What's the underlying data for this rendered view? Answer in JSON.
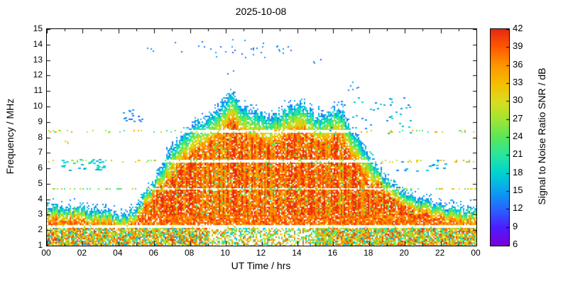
{
  "chart_data": {
    "type": "heatmap",
    "title": "2025-10-08",
    "xlabel": "UT Time / hrs",
    "ylabel": "Frequency / MHz",
    "xlim": [
      0,
      24
    ],
    "ylim": [
      1,
      15
    ],
    "x_ticks": [
      {
        "t": 0,
        "label": "00"
      },
      {
        "t": 2,
        "label": "02"
      },
      {
        "t": 4,
        "label": "04"
      },
      {
        "t": 6,
        "label": "06"
      },
      {
        "t": 8,
        "label": "08"
      },
      {
        "t": 10,
        "label": "10"
      },
      {
        "t": 12,
        "label": "12"
      },
      {
        "t": 14,
        "label": "14"
      },
      {
        "t": 16,
        "label": "16"
      },
      {
        "t": 18,
        "label": "18"
      },
      {
        "t": 20,
        "label": "20"
      },
      {
        "t": 22,
        "label": "22"
      },
      {
        "t": 24,
        "label": "00"
      }
    ],
    "x_minor_step": 1,
    "y_ticks": [
      1,
      2,
      3,
      4,
      5,
      6,
      7,
      8,
      9,
      10,
      11,
      12,
      13,
      14,
      15
    ],
    "colorbar": {
      "label": "Signal to Noise Ratio SNR / dB",
      "vmin": 6,
      "vmax": 42,
      "ticks": [
        6,
        9,
        12,
        15,
        18,
        21,
        24,
        27,
        30,
        33,
        36,
        39,
        42
      ]
    },
    "colormap": [
      [
        6,
        "#7d00d8"
      ],
      [
        9,
        "#4b1eff"
      ],
      [
        12,
        "#2864ff"
      ],
      [
        15,
        "#0aa0f0"
      ],
      [
        18,
        "#00d2d2"
      ],
      [
        21,
        "#28e6a0"
      ],
      [
        24,
        "#5ae65a"
      ],
      [
        27,
        "#a0e632"
      ],
      [
        30,
        "#dcdc1e"
      ],
      [
        33,
        "#f5be00"
      ],
      [
        36,
        "#ff9600"
      ],
      [
        39,
        "#ff5a00"
      ],
      [
        42,
        "#e62814"
      ]
    ],
    "frame_color": "#000000",
    "background_color": "#ffffff",
    "envelope": [
      [
        0,
        3.6
      ],
      [
        1,
        3.4
      ],
      [
        2,
        3.4
      ],
      [
        3,
        3.2
      ],
      [
        4,
        3.0
      ],
      [
        4.5,
        3.0
      ],
      [
        5,
        3.5
      ],
      [
        5.5,
        4.3
      ],
      [
        6,
        5.2
      ],
      [
        6.5,
        6.3
      ],
      [
        7,
        7.3
      ],
      [
        7.5,
        8.0
      ],
      [
        8,
        8.6
      ],
      [
        8.5,
        9.0
      ],
      [
        9,
        9.3
      ],
      [
        9.5,
        9.7
      ],
      [
        10,
        10.3
      ],
      [
        10.3,
        10.9
      ],
      [
        10.6,
        10.4
      ],
      [
        11,
        9.9
      ],
      [
        11.5,
        9.6
      ],
      [
        12,
        9.5
      ],
      [
        12.5,
        9.3
      ],
      [
        13,
        9.6
      ],
      [
        13.5,
        9.9
      ],
      [
        14,
        10.2
      ],
      [
        14.5,
        10.0
      ],
      [
        15,
        9.4
      ],
      [
        15.5,
        9.3
      ],
      [
        16,
        9.7
      ],
      [
        16.3,
        9.9
      ],
      [
        16.6,
        9.4
      ],
      [
        17,
        8.6
      ],
      [
        17.5,
        7.8
      ],
      [
        18,
        6.9
      ],
      [
        18.5,
        6.0
      ],
      [
        19,
        5.3
      ],
      [
        19.5,
        4.8
      ],
      [
        20,
        4.4
      ],
      [
        20.5,
        4.1
      ],
      [
        21,
        3.9
      ],
      [
        21.5,
        3.7
      ],
      [
        22,
        3.6
      ],
      [
        22.5,
        3.5
      ],
      [
        23,
        3.4
      ],
      [
        24,
        3.3
      ]
    ],
    "gap_bands": [
      {
        "f": [
          2.18,
          2.3
        ],
        "keep": 0.05
      },
      {
        "f": [
          4.62,
          4.74
        ],
        "keep": 0.35
      },
      {
        "f": [
          6.38,
          6.52
        ],
        "keep": 0.12
      },
      {
        "f": [
          8.32,
          8.48
        ],
        "keep": 0.12
      }
    ],
    "sporadic_clusters": [
      {
        "t": [
          6.5,
          12.2
        ],
        "f": [
          13.2,
          14.35
        ],
        "count": 26,
        "snr": [
          11,
          16
        ],
        "w": 2
      },
      {
        "t": [
          12.6,
          13.7
        ],
        "f": [
          13.4,
          14.1
        ],
        "count": 8,
        "snr": [
          11,
          16
        ],
        "w": 2
      },
      {
        "t": [
          15.8,
          20.4
        ],
        "f": [
          8.2,
          10.6
        ],
        "count": 48,
        "snr": [
          12,
          20
        ],
        "w": 3
      },
      {
        "t": [
          16.8,
          17.5
        ],
        "f": [
          11.0,
          11.7
        ],
        "count": 6,
        "snr": [
          12,
          16
        ],
        "w": 2
      },
      {
        "t": [
          0.8,
          3.3
        ],
        "f": [
          5.9,
          6.6
        ],
        "count": 34,
        "snr": [
          15,
          21
        ],
        "w": 4
      },
      {
        "t": [
          4.1,
          5.3
        ],
        "f": [
          9.0,
          9.8
        ],
        "count": 16,
        "snr": [
          11,
          16
        ],
        "w": 3
      },
      {
        "t": [
          19.5,
          22.4
        ],
        "f": [
          5.8,
          6.6
        ],
        "count": 14,
        "snr": [
          14,
          19
        ],
        "w": 4
      },
      {
        "t": [
          0.9,
          1.3
        ],
        "f": [
          7.6,
          7.95
        ],
        "count": 3,
        "snr": [
          28,
          33
        ],
        "w": 2
      },
      {
        "t": [
          5.6,
          6.2
        ],
        "f": [
          13.5,
          13.9
        ],
        "count": 3,
        "snr": [
          11,
          15
        ],
        "w": 2
      },
      {
        "t": [
          10.0,
          10.6
        ],
        "f": [
          12.1,
          12.5
        ],
        "count": 2,
        "snr": [
          11,
          15
        ],
        "w": 2
      },
      {
        "t": [
          14.8,
          15.3
        ],
        "f": [
          12.8,
          13.2
        ],
        "count": 3,
        "snr": [
          11,
          15
        ],
        "w": 2
      }
    ],
    "seed": 20251008
  }
}
